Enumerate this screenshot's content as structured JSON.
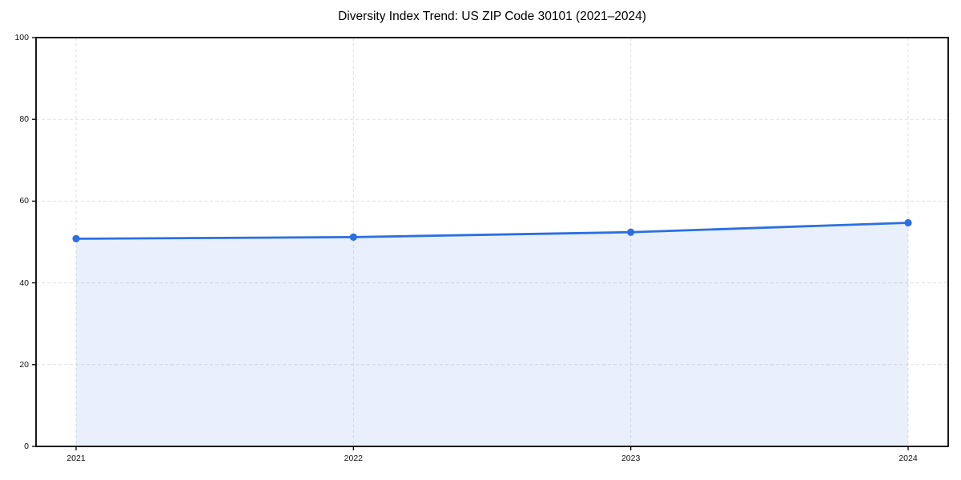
{
  "chart_data": {
    "type": "area",
    "title": "Diversity Index Trend: US ZIP Code 30101 (2021–2024)",
    "categories": [
      "2021",
      "2022",
      "2023",
      "2024"
    ],
    "series": [
      {
        "name": "Diversity Index",
        "values": [
          50.8,
          51.2,
          52.4,
          54.7
        ]
      }
    ],
    "xlabel": "",
    "ylabel": "",
    "ylim": [
      0,
      100
    ],
    "yticks": [
      0,
      20,
      40,
      60,
      80,
      100
    ],
    "grid": "dashed-both-axes",
    "legend": "none",
    "marker": "circle",
    "colors": {
      "line": "#2b6fe2",
      "marker": "#2b6fe2",
      "fill": "rgba(43,111,226,0.10)",
      "gridline": "#e0e0e0",
      "axis": "#000000",
      "tick_label": "#111111",
      "background": "#ffffff"
    }
  }
}
